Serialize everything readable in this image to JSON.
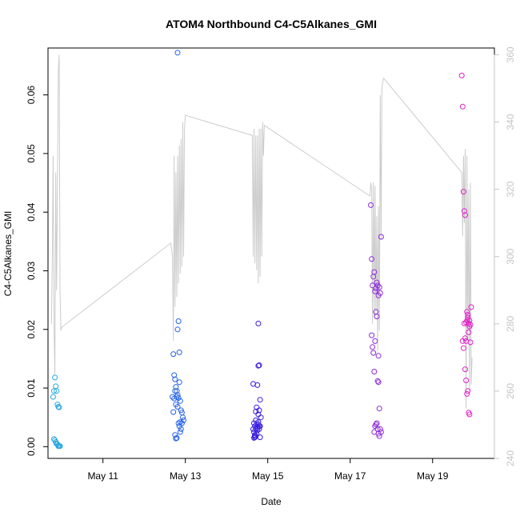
{
  "chart_data": {
    "type": "scatter",
    "title": "ATOM4 Northbound C4-C5Alkanes_GMI",
    "xlabel": "Date",
    "ylabel": "C4-C5Alkanes_GMI",
    "x_ticks": [
      "May 11",
      "May 13",
      "May 15",
      "May 17",
      "May 19"
    ],
    "y_ticks": [
      "0.00",
      "0.01",
      "0.02",
      "0.03",
      "0.04",
      "0.05",
      "0.06"
    ],
    "y2_ticks": [
      "240",
      "260",
      "280",
      "300",
      "320",
      "340",
      "360"
    ],
    "xlim": [
      "2018-05-09T16:00",
      "2018-05-20T12:00"
    ],
    "ylim": [
      -0.002,
      0.068
    ],
    "y2lim": [
      240,
      362
    ],
    "grid": false,
    "colors": {
      "line": "#cccccc",
      "axis": "#000000",
      "right_axis": "#c4c4c4"
    },
    "series": [
      {
        "kind": "points",
        "color": "#29a8e0",
        "x": [
          "2018-05-09T19:00",
          "2018-05-09T19:30",
          "2018-05-09T20:00",
          "2018-05-09T20:30",
          "2018-05-09T21:00",
          "2018-05-09T21:30",
          "2018-05-09T22:00",
          "2018-05-09T22:30",
          "2018-05-09T19:30",
          "2018-05-09T20:00",
          "2018-05-09T20:30",
          "2018-05-09T21:00",
          "2018-05-09T21:30",
          "2018-05-09T22:00",
          "2018-05-09T22:00",
          "2018-05-09T22:30",
          "2018-05-09T23:00"
        ],
        "y": [
          0.0085,
          0.0095,
          0.0118,
          0.0103,
          0.0095,
          0.0072,
          0.0068,
          0.0067,
          0.0013,
          0.0011,
          0.0008,
          0.0005,
          0.0004,
          0.0002,
          0.0001,
          0.0001,
          0.0001
        ]
      },
      {
        "kind": "points",
        "color": "#2563e6",
        "x": [
          "2018-05-12T16:30",
          "2018-05-12T17:00",
          "2018-05-12T17:30",
          "2018-05-12T18:00",
          "2018-05-12T18:30",
          "2018-05-12T19:00",
          "2018-05-12T19:30",
          "2018-05-12T20:00",
          "2018-05-12T20:30",
          "2018-05-12T21:00",
          "2018-05-12T21:30",
          "2018-05-12T22:00",
          "2018-05-12T22:30",
          "2018-05-12T23:00",
          "2018-05-12T17:00",
          "2018-05-12T17:30",
          "2018-05-12T18:00",
          "2018-05-12T18:30",
          "2018-05-12T19:00",
          "2018-05-12T19:30",
          "2018-05-12T20:00",
          "2018-05-12T20:30",
          "2018-05-12T21:00",
          "2018-05-12T21:30",
          "2018-05-12T22:00",
          "2018-05-12T18:00",
          "2018-05-12T18:30",
          "2018-05-12T19:00",
          "2018-05-12T19:30",
          "2018-05-12T20:00",
          "2018-05-12T20:30",
          "2018-05-12T21:00",
          "2018-05-12T19:30"
        ],
        "y": [
          0.0085,
          0.0158,
          0.0122,
          0.0115,
          0.0102,
          0.0095,
          0.0088,
          0.0083,
          0.011,
          0.0078,
          0.0062,
          0.0058,
          0.005,
          0.0045,
          0.0059,
          0.0082,
          0.0095,
          0.0072,
          0.0085,
          0.0068,
          0.004,
          0.0035,
          0.0042,
          0.003,
          0.004,
          0.002,
          0.0014,
          0.0015,
          0.02,
          0.0214,
          0.0161,
          0.0025,
          0.0672
        ]
      },
      {
        "kind": "points",
        "color": "#3a1ee0",
        "x": [
          "2018-05-14T15:30",
          "2018-05-14T16:00",
          "2018-05-14T16:30",
          "2018-05-14T17:00",
          "2018-05-14T17:30",
          "2018-05-14T18:00",
          "2018-05-14T18:30",
          "2018-05-14T19:00",
          "2018-05-14T19:30",
          "2018-05-14T20:00",
          "2018-05-14T15:30",
          "2018-05-14T16:00",
          "2018-05-14T16:30",
          "2018-05-14T17:00",
          "2018-05-14T17:30",
          "2018-05-14T18:00",
          "2018-05-14T18:30",
          "2018-05-14T19:00",
          "2018-05-14T19:30",
          "2018-05-14T16:30",
          "2018-05-14T17:00",
          "2018-05-14T17:30",
          "2018-05-14T18:00",
          "2018-05-14T18:30",
          "2018-05-14T19:00",
          "2018-05-14T16:00",
          "2018-05-14T16:30",
          "2018-05-14T17:00",
          "2018-05-14T18:00",
          "2018-05-14T18:30",
          "2018-05-14T19:00",
          "2018-05-14T19:30",
          "2018-05-14T18:30"
        ],
        "y": [
          0.0107,
          0.004,
          0.0035,
          0.006,
          0.0067,
          0.0105,
          0.0055,
          0.0062,
          0.008,
          0.005,
          0.003,
          0.0025,
          0.002,
          0.0045,
          0.0038,
          0.0035,
          0.0042,
          0.003,
          0.0035,
          0.0016,
          0.0018,
          0.0022,
          0.0028,
          0.0138,
          0.0139,
          0.0015,
          0.0018,
          0.003,
          0.0032,
          0.0038,
          0.0035,
          0.0016,
          0.021
        ]
      },
      {
        "kind": "points",
        "color": "#8e2bd8",
        "x": [
          "2018-05-17T12:00",
          "2018-05-17T12:30",
          "2018-05-17T13:00",
          "2018-05-17T13:30",
          "2018-05-17T14:00",
          "2018-05-17T14:30",
          "2018-05-17T15:00",
          "2018-05-17T15:30",
          "2018-05-17T16:00",
          "2018-05-17T16:30",
          "2018-05-17T17:00",
          "2018-05-17T17:30",
          "2018-05-17T18:00",
          "2018-05-17T12:30",
          "2018-05-17T13:00",
          "2018-05-17T13:30",
          "2018-05-17T14:00",
          "2018-05-17T14:30",
          "2018-05-17T15:00",
          "2018-05-17T15:30",
          "2018-05-17T16:00",
          "2018-05-17T16:30",
          "2018-05-17T17:00",
          "2018-05-17T14:00",
          "2018-05-17T14:30",
          "2018-05-17T15:00",
          "2018-05-17T15:30",
          "2018-05-17T16:00",
          "2018-05-17T16:30",
          "2018-05-17T17:00",
          "2018-05-17T17:30",
          "2018-05-17T18:00",
          "2018-05-17T16:30"
        ],
        "y": [
          0.0412,
          0.032,
          0.0275,
          0.029,
          0.0298,
          0.0265,
          0.027,
          0.028,
          0.0275,
          0.0258,
          0.0272,
          0.0262,
          0.0358,
          0.019,
          0.017,
          0.016,
          0.0128,
          0.018,
          0.023,
          0.0222,
          0.0112,
          0.011,
          0.0065,
          0.0025,
          0.0035,
          0.0038,
          0.004,
          0.003,
          0.0022,
          0.0018,
          0.003,
          0.0025,
          0.0155
        ]
      },
      {
        "kind": "points",
        "color": "#e020c8",
        "x": [
          "2018-05-19T17:00",
          "2018-05-19T17:30",
          "2018-05-19T18:00",
          "2018-05-19T18:30",
          "2018-05-19T19:00",
          "2018-05-19T19:30",
          "2018-05-19T20:00",
          "2018-05-19T20:30",
          "2018-05-19T21:00",
          "2018-05-19T21:30",
          "2018-05-19T22:00",
          "2018-05-19T22:30",
          "2018-05-19T18:30",
          "2018-05-19T19:00",
          "2018-05-19T19:30",
          "2018-05-19T20:00",
          "2018-05-19T20:30",
          "2018-05-19T21:00",
          "2018-05-19T21:30",
          "2018-05-19T22:00",
          "2018-05-19T19:00",
          "2018-05-19T19:30",
          "2018-05-19T20:00",
          "2018-05-19T20:30",
          "2018-05-19T21:00",
          "2018-05-19T21:30",
          "2018-05-19T17:30",
          "2018-05-19T18:00"
        ],
        "y": [
          0.0633,
          0.058,
          0.0435,
          0.0402,
          0.0395,
          0.0212,
          0.0215,
          0.0225,
          0.021,
          0.0205,
          0.0208,
          0.0238,
          0.021,
          0.0185,
          0.018,
          0.023,
          0.022,
          0.0195,
          0.0215,
          0.0178,
          0.0132,
          0.0113,
          0.009,
          0.0095,
          0.0058,
          0.0055,
          0.018,
          0.0168
        ]
      },
      {
        "kind": "line",
        "axis": "right",
        "color": "#cccccc",
        "x": [
          "2018-05-09T18:00",
          "2018-05-09T18:30",
          "2018-05-09T19:00",
          "2018-05-09T19:30",
          "2018-05-09T20:00",
          "2018-05-09T20:30",
          "2018-05-09T21:00",
          "2018-05-09T21:30",
          "2018-05-09T22:00",
          "2018-05-09T22:30",
          "2018-05-09T23:00",
          "2018-05-09T23:30",
          "2018-05-10T00:00",
          "2018-05-12T15:30",
          "2018-05-12T16:00",
          "2018-05-12T16:30",
          "2018-05-12T17:00",
          "2018-05-12T17:30",
          "2018-05-12T18:00",
          "2018-05-12T18:30",
          "2018-05-12T19:00",
          "2018-05-12T19:30",
          "2018-05-12T20:00",
          "2018-05-12T20:30",
          "2018-05-12T21:00",
          "2018-05-12T21:30",
          "2018-05-12T22:00",
          "2018-05-12T22:30",
          "2018-05-12T23:00",
          "2018-05-12T23:30",
          "2018-05-13T00:00",
          "2018-05-14T15:00",
          "2018-05-14T15:30",
          "2018-05-14T16:00",
          "2018-05-14T16:30",
          "2018-05-14T17:00",
          "2018-05-14T17:30",
          "2018-05-14T18:00",
          "2018-05-14T18:30",
          "2018-05-14T19:00",
          "2018-05-14T19:30",
          "2018-05-14T20:00",
          "2018-05-14T20:30",
          "2018-05-14T21:00",
          "2018-05-14T21:30",
          "2018-05-14T22:00",
          "2018-05-17T11:30",
          "2018-05-17T12:00",
          "2018-05-17T12:30",
          "2018-05-17T13:00",
          "2018-05-17T13:30",
          "2018-05-17T14:00",
          "2018-05-17T14:30",
          "2018-05-17T15:00",
          "2018-05-17T15:30",
          "2018-05-17T16:00",
          "2018-05-17T16:30",
          "2018-05-17T17:00",
          "2018-05-17T17:30",
          "2018-05-17T18:00",
          "2018-05-17T18:30",
          "2018-05-17T19:00",
          "2018-05-17T19:30",
          "2018-05-19T17:00",
          "2018-05-19T17:30",
          "2018-05-19T18:00",
          "2018-05-19T18:30",
          "2018-05-19T19:00",
          "2018-05-19T19:30",
          "2018-05-19T20:00",
          "2018-05-19T20:30",
          "2018-05-19T21:00",
          "2018-05-19T21:30",
          "2018-05-19T22:00",
          "2018-05-19T22:30",
          "2018-05-19T23:00"
        ],
        "y": [
          280,
          300,
          330,
          280,
          265,
          325,
          290,
          320,
          355,
          360,
          290,
          278,
          279,
          304,
          302,
          300,
          275,
          330,
          285,
          325,
          288,
          330,
          292,
          333,
          295,
          335,
          297,
          340,
          300,
          338,
          342,
          336,
          300,
          338,
          298,
          336,
          296,
          336,
          292,
          338,
          294,
          338,
          300,
          340,
          330,
          339,
          318,
          322,
          320,
          280,
          322,
          282,
          321,
          283,
          312,
          272,
          315,
          278,
          348,
          305,
          350,
          352,
          353,
          325,
          306,
          330,
          310,
          332,
          255,
          330,
          275,
          320,
          260,
          322,
          262,
          270
        ]
      }
    ]
  }
}
